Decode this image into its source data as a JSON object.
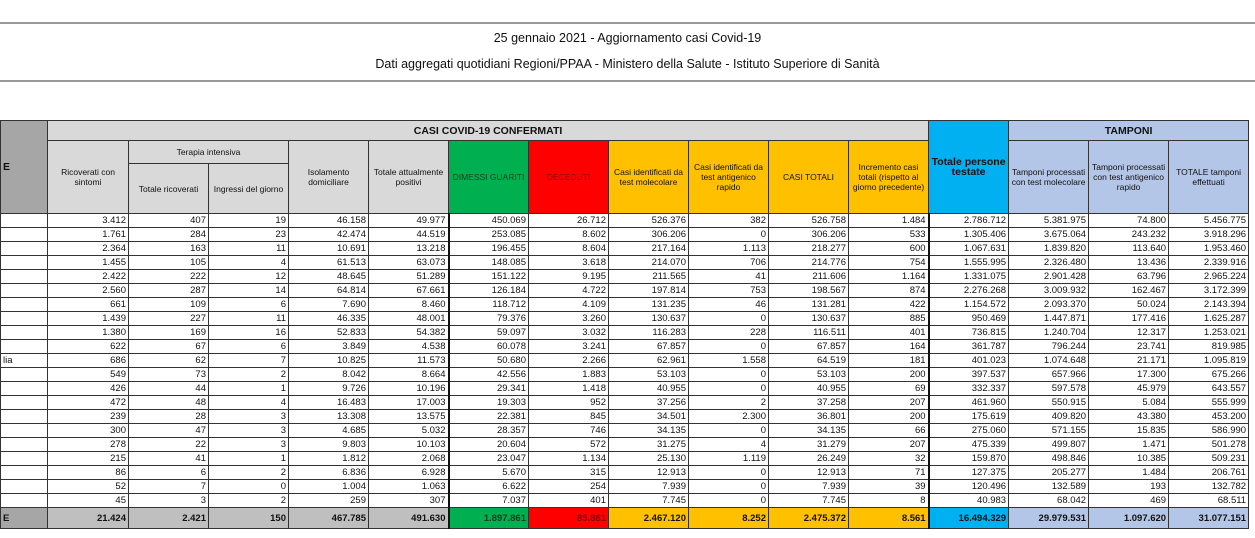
{
  "header": {
    "title": "25 gennaio 2021 - Aggiornamento casi Covid-19",
    "subtitle": "Dati aggregati quotidiani Regioni/PPAA - Ministero della Salute - Istituto Superiore di Sanità"
  },
  "table": {
    "region_header": "E",
    "group_confermati": "CASI COVID-19 CONFERMATI",
    "group_terapia": "Terapia intensiva",
    "group_tamponi": "TAMPONI",
    "columns": [
      "Ricoverati con sintomi",
      "Totale ricoverati",
      "Ingressi del giorno",
      "Isolamento domiciliare",
      "Totale attualmente positivi",
      "DIMESSI GUARITI",
      "DECEDUTI",
      "Casi identificati da test molecolare",
      "Casi identificati da test antigenico rapido",
      "CASI TOTALI",
      "Incremento casi totali (rispetto al giorno precedente)",
      "Totale persone testate",
      "Tamponi processati con test molecolare",
      "Tamponi processati con test antigenico rapido",
      "TOTALE tamponi effettuati"
    ],
    "rows": [
      [
        "",
        "3.412",
        "407",
        "19",
        "46.158",
        "49.977",
        "450.069",
        "26.712",
        "526.376",
        "382",
        "526.758",
        "1.484",
        "2.786.712",
        "5.381.975",
        "74.800",
        "5.456.775"
      ],
      [
        "",
        "1.761",
        "284",
        "23",
        "42.474",
        "44.519",
        "253.085",
        "8.602",
        "306.206",
        "0",
        "306.206",
        "533",
        "1.305.406",
        "3.675.064",
        "243.232",
        "3.918.296"
      ],
      [
        "",
        "2.364",
        "163",
        "11",
        "10.691",
        "13.218",
        "196.455",
        "8.604",
        "217.164",
        "1.113",
        "218.277",
        "600",
        "1.067.631",
        "1.839.820",
        "113.640",
        "1.953.460"
      ],
      [
        "",
        "1.455",
        "105",
        "4",
        "61.513",
        "63.073",
        "148.085",
        "3.618",
        "214.070",
        "706",
        "214.776",
        "754",
        "1.555.995",
        "2.326.480",
        "13.436",
        "2.339.916"
      ],
      [
        "",
        "2.422",
        "222",
        "12",
        "48.645",
        "51.289",
        "151.122",
        "9.195",
        "211.565",
        "41",
        "211.606",
        "1.164",
        "1.331.075",
        "2.901.428",
        "63.796",
        "2.965.224"
      ],
      [
        "",
        "2.560",
        "287",
        "14",
        "64.814",
        "67.661",
        "126.184",
        "4.722",
        "197.814",
        "753",
        "198.567",
        "874",
        "2.276.268",
        "3.009.932",
        "162.467",
        "3.172.399"
      ],
      [
        "",
        "661",
        "109",
        "6",
        "7.690",
        "8.460",
        "118.712",
        "4.109",
        "131.235",
        "46",
        "131.281",
        "422",
        "1.154.572",
        "2.093.370",
        "50.024",
        "2.143.394"
      ],
      [
        "",
        "1.439",
        "227",
        "11",
        "46.335",
        "48.001",
        "79.376",
        "3.260",
        "130.637",
        "0",
        "130.637",
        "885",
        "950.469",
        "1.447.871",
        "177.416",
        "1.625.287"
      ],
      [
        "",
        "1.380",
        "169",
        "16",
        "52.833",
        "54.382",
        "59.097",
        "3.032",
        "116.283",
        "228",
        "116.511",
        "401",
        "736.815",
        "1.240.704",
        "12.317",
        "1.253.021"
      ],
      [
        "",
        "622",
        "67",
        "6",
        "3.849",
        "4.538",
        "60.078",
        "3.241",
        "67.857",
        "0",
        "67.857",
        "164",
        "361.787",
        "796.244",
        "23.741",
        "819.985"
      ],
      [
        "lia",
        "686",
        "62",
        "7",
        "10.825",
        "11.573",
        "50.680",
        "2.266",
        "62.961",
        "1.558",
        "64.519",
        "181",
        "401.023",
        "1.074.648",
        "21.171",
        "1.095.819"
      ],
      [
        "",
        "549",
        "73",
        "2",
        "8.042",
        "8.664",
        "42.556",
        "1.883",
        "53.103",
        "0",
        "53.103",
        "200",
        "397.537",
        "657.966",
        "17.300",
        "675.266"
      ],
      [
        "",
        "426",
        "44",
        "1",
        "9.726",
        "10.196",
        "29.341",
        "1.418",
        "40.955",
        "0",
        "40.955",
        "69",
        "332.337",
        "597.578",
        "45.979",
        "643.557"
      ],
      [
        "",
        "472",
        "48",
        "4",
        "16.483",
        "17.003",
        "19.303",
        "952",
        "37.256",
        "2",
        "37.258",
        "207",
        "461.960",
        "550.915",
        "5.084",
        "555.999"
      ],
      [
        "",
        "239",
        "28",
        "3",
        "13.308",
        "13.575",
        "22.381",
        "845",
        "34.501",
        "2.300",
        "36.801",
        "200",
        "175.619",
        "409.820",
        "43.380",
        "453.200"
      ],
      [
        "",
        "300",
        "47",
        "3",
        "4.685",
        "5.032",
        "28.357",
        "746",
        "34.135",
        "0",
        "34.135",
        "66",
        "275.060",
        "571.155",
        "15.835",
        "586.990"
      ],
      [
        "",
        "278",
        "22",
        "3",
        "9.803",
        "10.103",
        "20.604",
        "572",
        "31.275",
        "4",
        "31.279",
        "207",
        "475.339",
        "499.807",
        "1.471",
        "501.278"
      ],
      [
        "",
        "215",
        "41",
        "1",
        "1.812",
        "2.068",
        "23.047",
        "1.134",
        "25.130",
        "1.119",
        "26.249",
        "32",
        "159.870",
        "498.846",
        "10.385",
        "509.231"
      ],
      [
        "",
        "86",
        "6",
        "2",
        "6.836",
        "6.928",
        "5.670",
        "315",
        "12.913",
        "0",
        "12.913",
        "71",
        "127.375",
        "205.277",
        "1.484",
        "206.761"
      ],
      [
        "",
        "52",
        "7",
        "0",
        "1.004",
        "1.063",
        "6.622",
        "254",
        "7.939",
        "0",
        "7.939",
        "39",
        "120.496",
        "132.589",
        "193",
        "132.782"
      ],
      [
        "",
        "45",
        "3",
        "2",
        "259",
        "307",
        "7.037",
        "401",
        "7.745",
        "0",
        "7.745",
        "8",
        "40.983",
        "68.042",
        "469",
        "68.511"
      ]
    ],
    "total": [
      "E",
      "21.424",
      "2.421",
      "150",
      "467.785",
      "491.630",
      "1.897.861",
      "85.881",
      "2.467.120",
      "8.252",
      "2.475.372",
      "8.561",
      "16.494.329",
      "29.979.531",
      "1.097.620",
      "31.077.151"
    ]
  },
  "colors": {
    "guariti": "#00b050",
    "deceduti": "#ff0000",
    "casi": "#ffc000",
    "testate": "#00b0f0",
    "tamponi": "#b4c6e7",
    "header": "#d9d9d9"
  }
}
